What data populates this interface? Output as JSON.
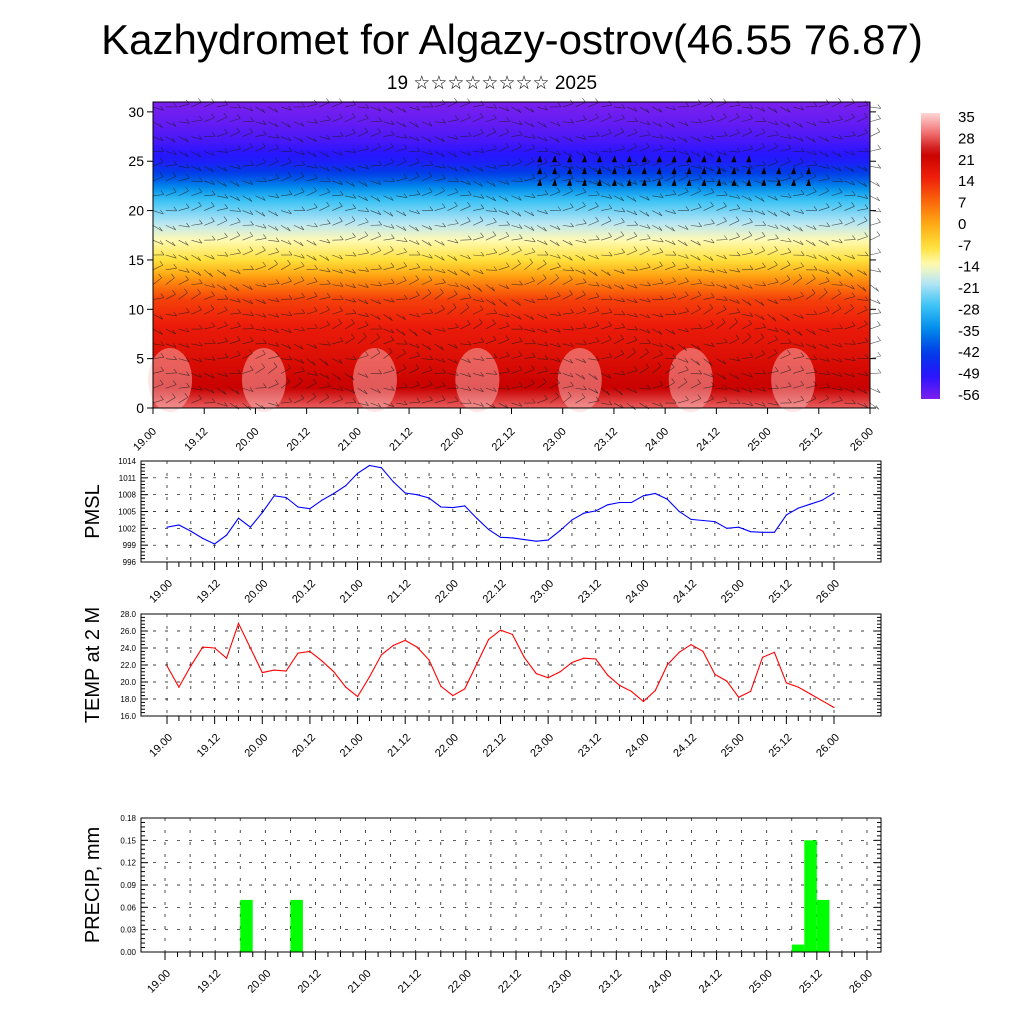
{
  "page": {
    "title": "Kazhydromet for Algazy-ostrov(46.55 76.87)",
    "subtitle": "19 ☆☆☆☆☆☆☆☆ 2025"
  },
  "colors": {
    "pmsl_line": "#0000ff",
    "temp_line": "#ff0000",
    "precip_bar": "#00ff00",
    "grid": "#000000"
  },
  "chart_data": [
    {
      "id": "cross-section",
      "type": "heatmap",
      "title": "",
      "xlabel": "",
      "ylabel": "",
      "x_ticks": [
        "19.00",
        "19.12",
        "20.00",
        "20.12",
        "21.00",
        "21.12",
        "22.00",
        "22.12",
        "23.00",
        "23.12",
        "24.00",
        "24.12",
        "25.00",
        "25.12",
        "26.00"
      ],
      "xlim": [
        0,
        168
      ],
      "y_ticks": [
        "0",
        "5",
        "10",
        "15",
        "20",
        "25",
        "30"
      ],
      "ylim": [
        0,
        31
      ],
      "colorbar": {
        "labels": [
          "35",
          "28",
          "21",
          "14",
          "7",
          "0",
          "-7",
          "-14",
          "-21",
          "-28",
          "-35",
          "-42",
          "-49",
          "-56"
        ],
        "range": [
          -60,
          38
        ]
      },
      "temperature_profile_by_height": {
        "height": [
          0,
          2,
          5,
          8,
          11,
          13,
          15,
          17,
          19,
          21,
          23,
          25,
          27,
          29,
          31
        ],
        "temp": [
          30,
          24,
          20,
          17,
          12,
          3,
          -8,
          -14,
          -21,
          -28,
          -40,
          -50,
          -55,
          -58,
          -60
        ]
      },
      "annotation": "wind barbs overlay; strong jet near 22-26 at 22.12-25.00"
    },
    {
      "id": "pmsl",
      "type": "line",
      "ylabel": "PMSL",
      "xlabel": "",
      "x_ticks": [
        "19.00",
        "19.12",
        "20.00",
        "20.12",
        "21.00",
        "21.12",
        "22.00",
        "22.12",
        "23.00",
        "23.12",
        "24.00",
        "24.12",
        "25.00",
        "25.12",
        "26.00"
      ],
      "x_hours": [
        0,
        3,
        6,
        9,
        12,
        15,
        18,
        21,
        24,
        27,
        30,
        33,
        36,
        39,
        42,
        45,
        48,
        51,
        54,
        57,
        60,
        63,
        66,
        69,
        72,
        75,
        78,
        81,
        84,
        87,
        90,
        93,
        96,
        99,
        102,
        105,
        108,
        111,
        114,
        117,
        120,
        123,
        126,
        129,
        132,
        135,
        138,
        141,
        144,
        147,
        150,
        153,
        156,
        159,
        162,
        165,
        168
      ],
      "values": [
        1002.2,
        1002.6,
        1001.5,
        1000.2,
        999.2,
        1000.8,
        1003.8,
        1002.2,
        1004.8,
        1007.8,
        1007.5,
        1005.8,
        1005.5,
        1007,
        1008.2,
        1009.6,
        1011.8,
        1013.2,
        1012.8,
        1010.3,
        1008.3,
        1008,
        1007.4,
        1005.8,
        1005.7,
        1006,
        1003.8,
        1001.8,
        1000.4,
        1000.3,
        1000,
        999.7,
        999.9,
        1001.6,
        1003.5,
        1004.7,
        1005.1,
        1006.2,
        1006.6,
        1006.6,
        1007.8,
        1008.2,
        1007.2,
        1005,
        1003.6,
        1003.4,
        1003.2,
        1002,
        1002.2,
        1001.4,
        1001.3,
        1001.3,
        1004.4,
        1005.6,
        1006.3,
        1007,
        1008.3
      ],
      "y_ticks": [
        "996",
        "999",
        "1002",
        "1005",
        "1008",
        "1011",
        "1014"
      ],
      "ylim": [
        996,
        1014
      ]
    },
    {
      "id": "temp2m",
      "type": "line",
      "ylabel": "TEMP at 2 M",
      "xlabel": "",
      "x_ticks": [
        "19.00",
        "19.12",
        "20.00",
        "20.12",
        "21.00",
        "21.12",
        "22.00",
        "22.12",
        "23.00",
        "23.12",
        "24.00",
        "24.12",
        "25.00",
        "25.12",
        "26.00"
      ],
      "x_hours": [
        0,
        3,
        6,
        9,
        12,
        15,
        18,
        21,
        24,
        27,
        30,
        33,
        36,
        39,
        42,
        45,
        48,
        51,
        54,
        57,
        60,
        63,
        66,
        69,
        72,
        75,
        78,
        81,
        84,
        87,
        90,
        93,
        96,
        99,
        102,
        105,
        108,
        111,
        114,
        117,
        120,
        123,
        126,
        129,
        132,
        135,
        138,
        141,
        144,
        147,
        150,
        153,
        156,
        159,
        162,
        165,
        168
      ],
      "values": [
        21.9,
        19.4,
        21.9,
        24.1,
        24,
        22.8,
        26.9,
        24,
        21.1,
        21.4,
        21.3,
        23.4,
        23.6,
        22.5,
        21.2,
        19.4,
        18.3,
        20.6,
        23.2,
        24.3,
        24.9,
        24.1,
        22.6,
        19.5,
        18.4,
        19.2,
        22.1,
        25,
        26.1,
        25.6,
        22.9,
        21,
        20.5,
        21.2,
        22.3,
        22.8,
        22.7,
        20.8,
        19.6,
        18.9,
        17.7,
        19,
        22,
        23.5,
        24.4,
        23.6,
        20.9,
        20.1,
        18.2,
        18.9,
        22.9,
        23.5,
        19.9,
        19.4,
        18.6,
        17.8,
        17
      ],
      "y_ticks": [
        "16.0",
        "18.0",
        "20.0",
        "22.0",
        "24.0",
        "26.0",
        "28.0"
      ],
      "ylim": [
        16,
        28
      ]
    },
    {
      "id": "precip",
      "type": "bar",
      "ylabel": "PRECIP, mm",
      "xlabel": "",
      "x_ticks": [
        "19.00",
        "19.12",
        "20.00",
        "20.12",
        "21.00",
        "21.12",
        "22.00",
        "22.12",
        "23.00",
        "23.12",
        "24.00",
        "24.12",
        "25.00",
        "25.12",
        "26.00"
      ],
      "bars": [
        {
          "hour": 18,
          "value": 0.07
        },
        {
          "hour": 30,
          "value": 0.07
        },
        {
          "hour": 150,
          "value": 0.01
        },
        {
          "hour": 153,
          "value": 0.15
        },
        {
          "hour": 156,
          "value": 0.07
        }
      ],
      "y_ticks": [
        "0.00",
        "0.03",
        "0.06",
        "0.09",
        "0.12",
        "0.15",
        "0.18"
      ],
      "ylim": [
        0,
        0.18
      ]
    }
  ]
}
